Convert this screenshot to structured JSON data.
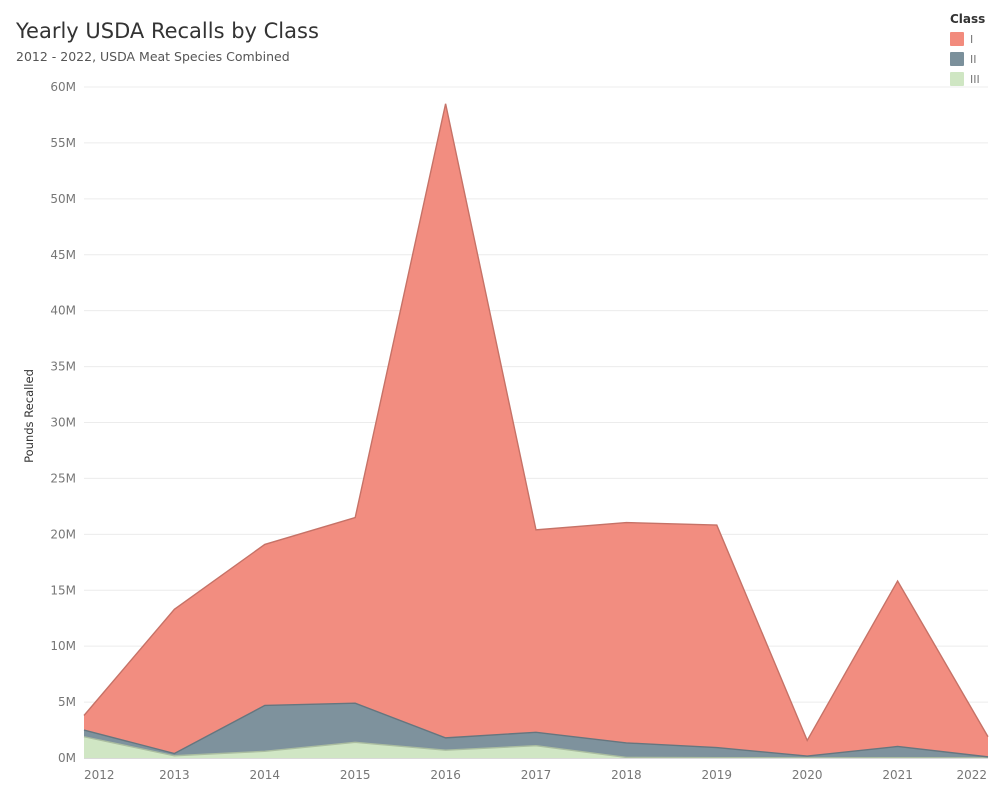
{
  "chart_data": {
    "type": "area",
    "stacked": true,
    "title": "Yearly USDA Recalls by Class",
    "subtitle": "2012 - 2022, USDA Meat Species Combined",
    "xlabel": "",
    "ylabel": "Pounds Recalled",
    "x": [
      "2012",
      "2013",
      "2014",
      "2015",
      "2016",
      "2017",
      "2018",
      "2019",
      "2020",
      "2021",
      "2022"
    ],
    "ylim": [
      0,
      60000000
    ],
    "yticks": [
      0,
      5000000,
      10000000,
      15000000,
      20000000,
      25000000,
      30000000,
      35000000,
      40000000,
      45000000,
      50000000,
      55000000,
      60000000
    ],
    "ytick_labels": [
      "0M",
      "5M",
      "10M",
      "15M",
      "20M",
      "25M",
      "30M",
      "35M",
      "40M",
      "45M",
      "50M",
      "55M",
      "60M"
    ],
    "grid": true,
    "legend": {
      "title": "Class",
      "position": "top-right"
    },
    "series": [
      {
        "name": "III",
        "color": "#cfe6c3",
        "values": [
          1900000,
          200000,
          600000,
          1400000,
          700000,
          1100000,
          50000,
          30000,
          20000,
          30000,
          20000
        ]
      },
      {
        "name": "II",
        "color": "#7b909b",
        "values": [
          600000,
          200000,
          4100000,
          3500000,
          1100000,
          1200000,
          1300000,
          900000,
          150000,
          1000000,
          80000
        ]
      },
      {
        "name": "I",
        "color": "#f28b7d",
        "values": [
          1300000,
          12900000,
          14400000,
          16600000,
          56700000,
          18100000,
          19700000,
          19900000,
          1400000,
          14800000,
          1800000
        ]
      }
    ]
  }
}
